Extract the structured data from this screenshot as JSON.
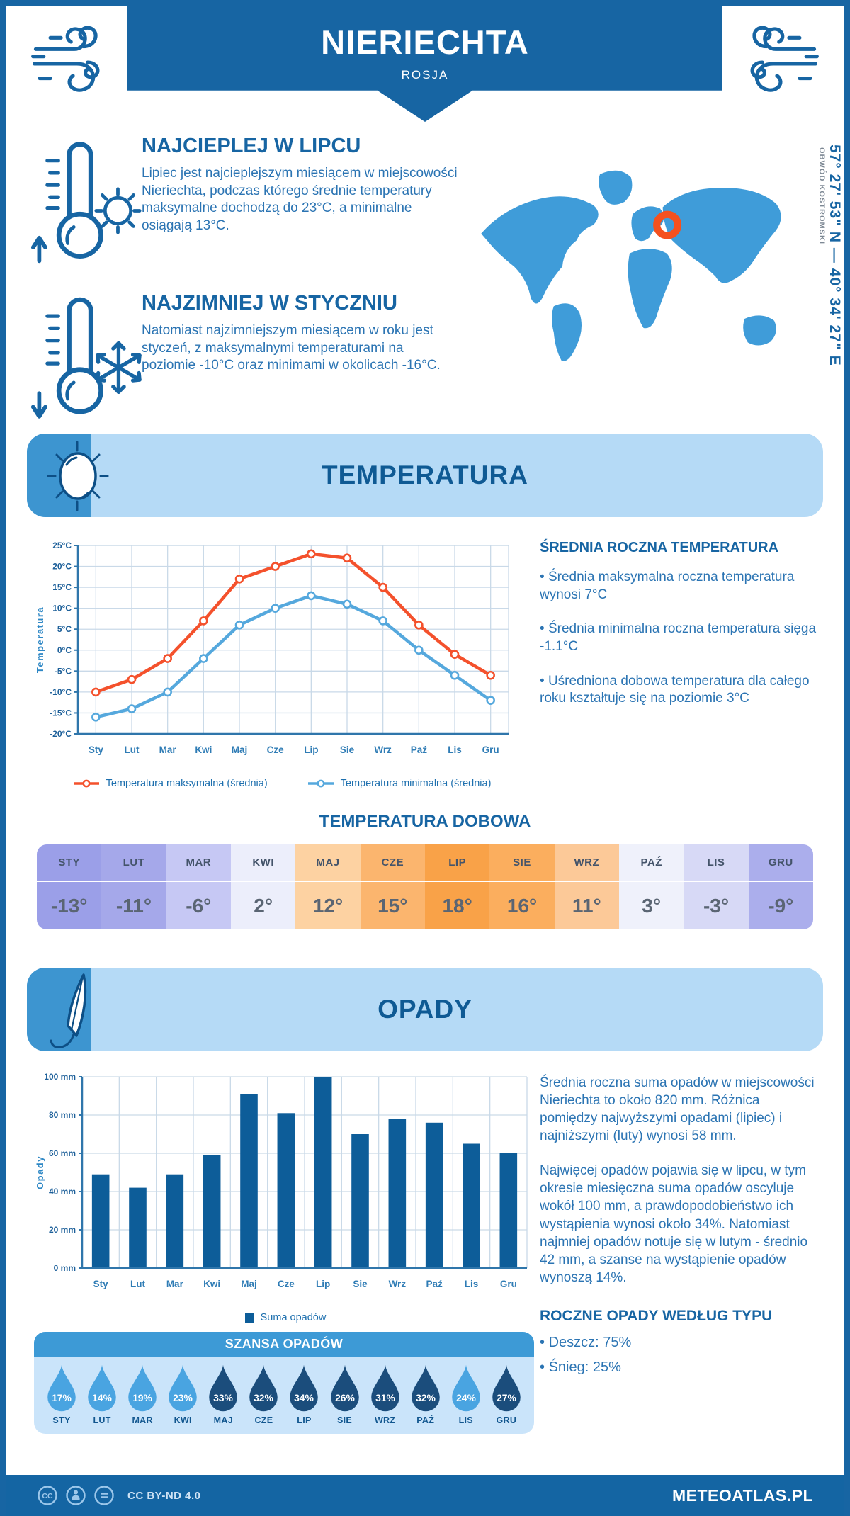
{
  "header": {
    "title": "NIERIECHTA",
    "subtitle": "ROSJA"
  },
  "intro": {
    "warmest": {
      "heading": "NAJCIEPLEJ W LIPCU",
      "text": "Lipiec jest najcieplejszym miesiącem w miejscowości Nieriechta, podczas którego średnie temperatury maksymalne dochodzą do 23°C, a minimalne osiągają 13°C."
    },
    "coldest": {
      "heading": "NAJZIMNIEJ W STYCZNIU",
      "text": "Natomiast najzimniejszym miesiącem w roku jest styczeń, z maksymalnymi temperaturami na poziomie -10°C oraz minimami w okolicach -16°C."
    },
    "location": {
      "coordinates": "57° 27' 53\" N — 40° 34' 27\" E",
      "region": "OBWÓD KOSTROMSKI"
    }
  },
  "temperature_section": {
    "banner": "TEMPERATURA",
    "side_heading": "ŚREDNIA ROCZNA TEMPERATURA",
    "bullets": [
      "Średnia maksymalna roczna temperatura wynosi 7°C",
      "Średnia minimalna roczna temperatura sięga -1.1°C",
      "Uśredniona dobowa temperatura dla całego roku kształtuje się na poziomie 3°C"
    ]
  },
  "precipitation_section": {
    "banner": "OPADY",
    "text1": "Średnia roczna suma opadów w miejscowości Nieriechta to około 820 mm. Różnica pomiędzy najwyższymi opadami (lipiec) i najniższymi (luty) wynosi 58 mm.",
    "text2": "Najwięcej opadów pojawia się w lipcu, w tym okresie miesięczna suma opadów oscyluje wokół 100 mm, a prawdopodobieństwo ich wystąpienia wynosi około 34%. Natomiast najmniej opadów notuje się w lutym - średnio 42 mm, a szanse na wystąpienie opadów wynoszą 14%.",
    "type_heading": "ROCZNE OPADY WEDŁUG TYPU",
    "type_bullets": [
      "Deszcz: 75%",
      "Śnieg: 25%"
    ]
  },
  "footer": {
    "license": "CC BY-ND 4.0",
    "brand": "METEOATLAS.PL"
  },
  "colors": {
    "primary_blue": "#1765a3",
    "banner_light": "#b5daf6",
    "banner_tab": "#3d95d0",
    "section_title": "#0f5a94",
    "body_text": "#2b74b3",
    "map_fill": "#3f9cd9",
    "marker_orange": "#f4511f",
    "max_line": "#f4512c",
    "min_line": "#55a8dd",
    "bar_fill": "#0d5d99",
    "grid": "#c9d9e8",
    "axis": "#2f76ab",
    "tick_text": "#1c5f99",
    "month_text": "#2f7cb5",
    "ylabel_text": "#2d87c5",
    "droplet_light": "#49a4e1",
    "droplet_dark": "#1b4d7c",
    "szansa_bg": "#cae4fa",
    "szansa_header": "#3d9ad6",
    "footer_bg": "#1465a3"
  },
  "chart_data": [
    {
      "type": "line",
      "title": "Temperatura",
      "categories": [
        "Sty",
        "Lut",
        "Mar",
        "Kwi",
        "Maj",
        "Cze",
        "Lip",
        "Sie",
        "Wrz",
        "Paź",
        "Lis",
        "Gru"
      ],
      "ylabel": "Temperatura",
      "ylim": [
        -20,
        25
      ],
      "ytick_step": 5,
      "ytick_suffix": "°C",
      "grid": true,
      "legend_position": "bottom",
      "series": [
        {
          "name": "Temperatura maksymalna (średnia)",
          "color": "#f4512c",
          "values": [
            -10,
            -7,
            -2,
            7,
            17,
            20,
            23,
            22,
            15,
            6,
            -1,
            -6
          ]
        },
        {
          "name": "Temperatura minimalna (średnia)",
          "color": "#55a8dd",
          "values": [
            -16,
            -14,
            -10,
            -2,
            6,
            10,
            13,
            11,
            7,
            0,
            -6,
            -12
          ]
        }
      ]
    },
    {
      "type": "bar",
      "title": "Opady",
      "categories": [
        "Sty",
        "Lut",
        "Mar",
        "Kwi",
        "Maj",
        "Cze",
        "Lip",
        "Sie",
        "Wrz",
        "Paź",
        "Lis",
        "Gru"
      ],
      "values": [
        49,
        42,
        49,
        59,
        91,
        81,
        100,
        70,
        78,
        76,
        65,
        60
      ],
      "ylabel": "Opady",
      "ylim": [
        0,
        100
      ],
      "ytick_step": 20,
      "ytick_suffix": " mm",
      "grid": true,
      "series_name": "Suma opadów",
      "bar_color": "#0d5d99",
      "legend_position": "bottom"
    },
    {
      "type": "table",
      "title": "TEMPERATURA DOBOWA",
      "months": [
        "STY",
        "LUT",
        "MAR",
        "KWI",
        "MAJ",
        "CZE",
        "LIP",
        "SIE",
        "WRZ",
        "PAŹ",
        "LIS",
        "GRU"
      ],
      "values": [
        "-13°",
        "-11°",
        "-6°",
        "2°",
        "12°",
        "15°",
        "18°",
        "16°",
        "11°",
        "3°",
        "-3°",
        "-9°"
      ],
      "cell_colors": [
        "#9b9fe8",
        "#a5a8ea",
        "#c6c8f4",
        "#eceefb",
        "#fdd2a2",
        "#fbb56e",
        "#f9a248",
        "#fbae5e",
        "#fcc998",
        "#eff1fb",
        "#d7d9f6",
        "#abaeec"
      ]
    },
    {
      "type": "pictogram",
      "title": "SZANSA OPADÓW",
      "months": [
        "STY",
        "LUT",
        "MAR",
        "KWI",
        "MAJ",
        "CZE",
        "LIP",
        "SIE",
        "WRZ",
        "PAŹ",
        "LIS",
        "GRU"
      ],
      "values": [
        17,
        14,
        19,
        23,
        33,
        32,
        34,
        26,
        31,
        32,
        24,
        27
      ],
      "unit": "%",
      "dark_threshold": 26
    }
  ]
}
